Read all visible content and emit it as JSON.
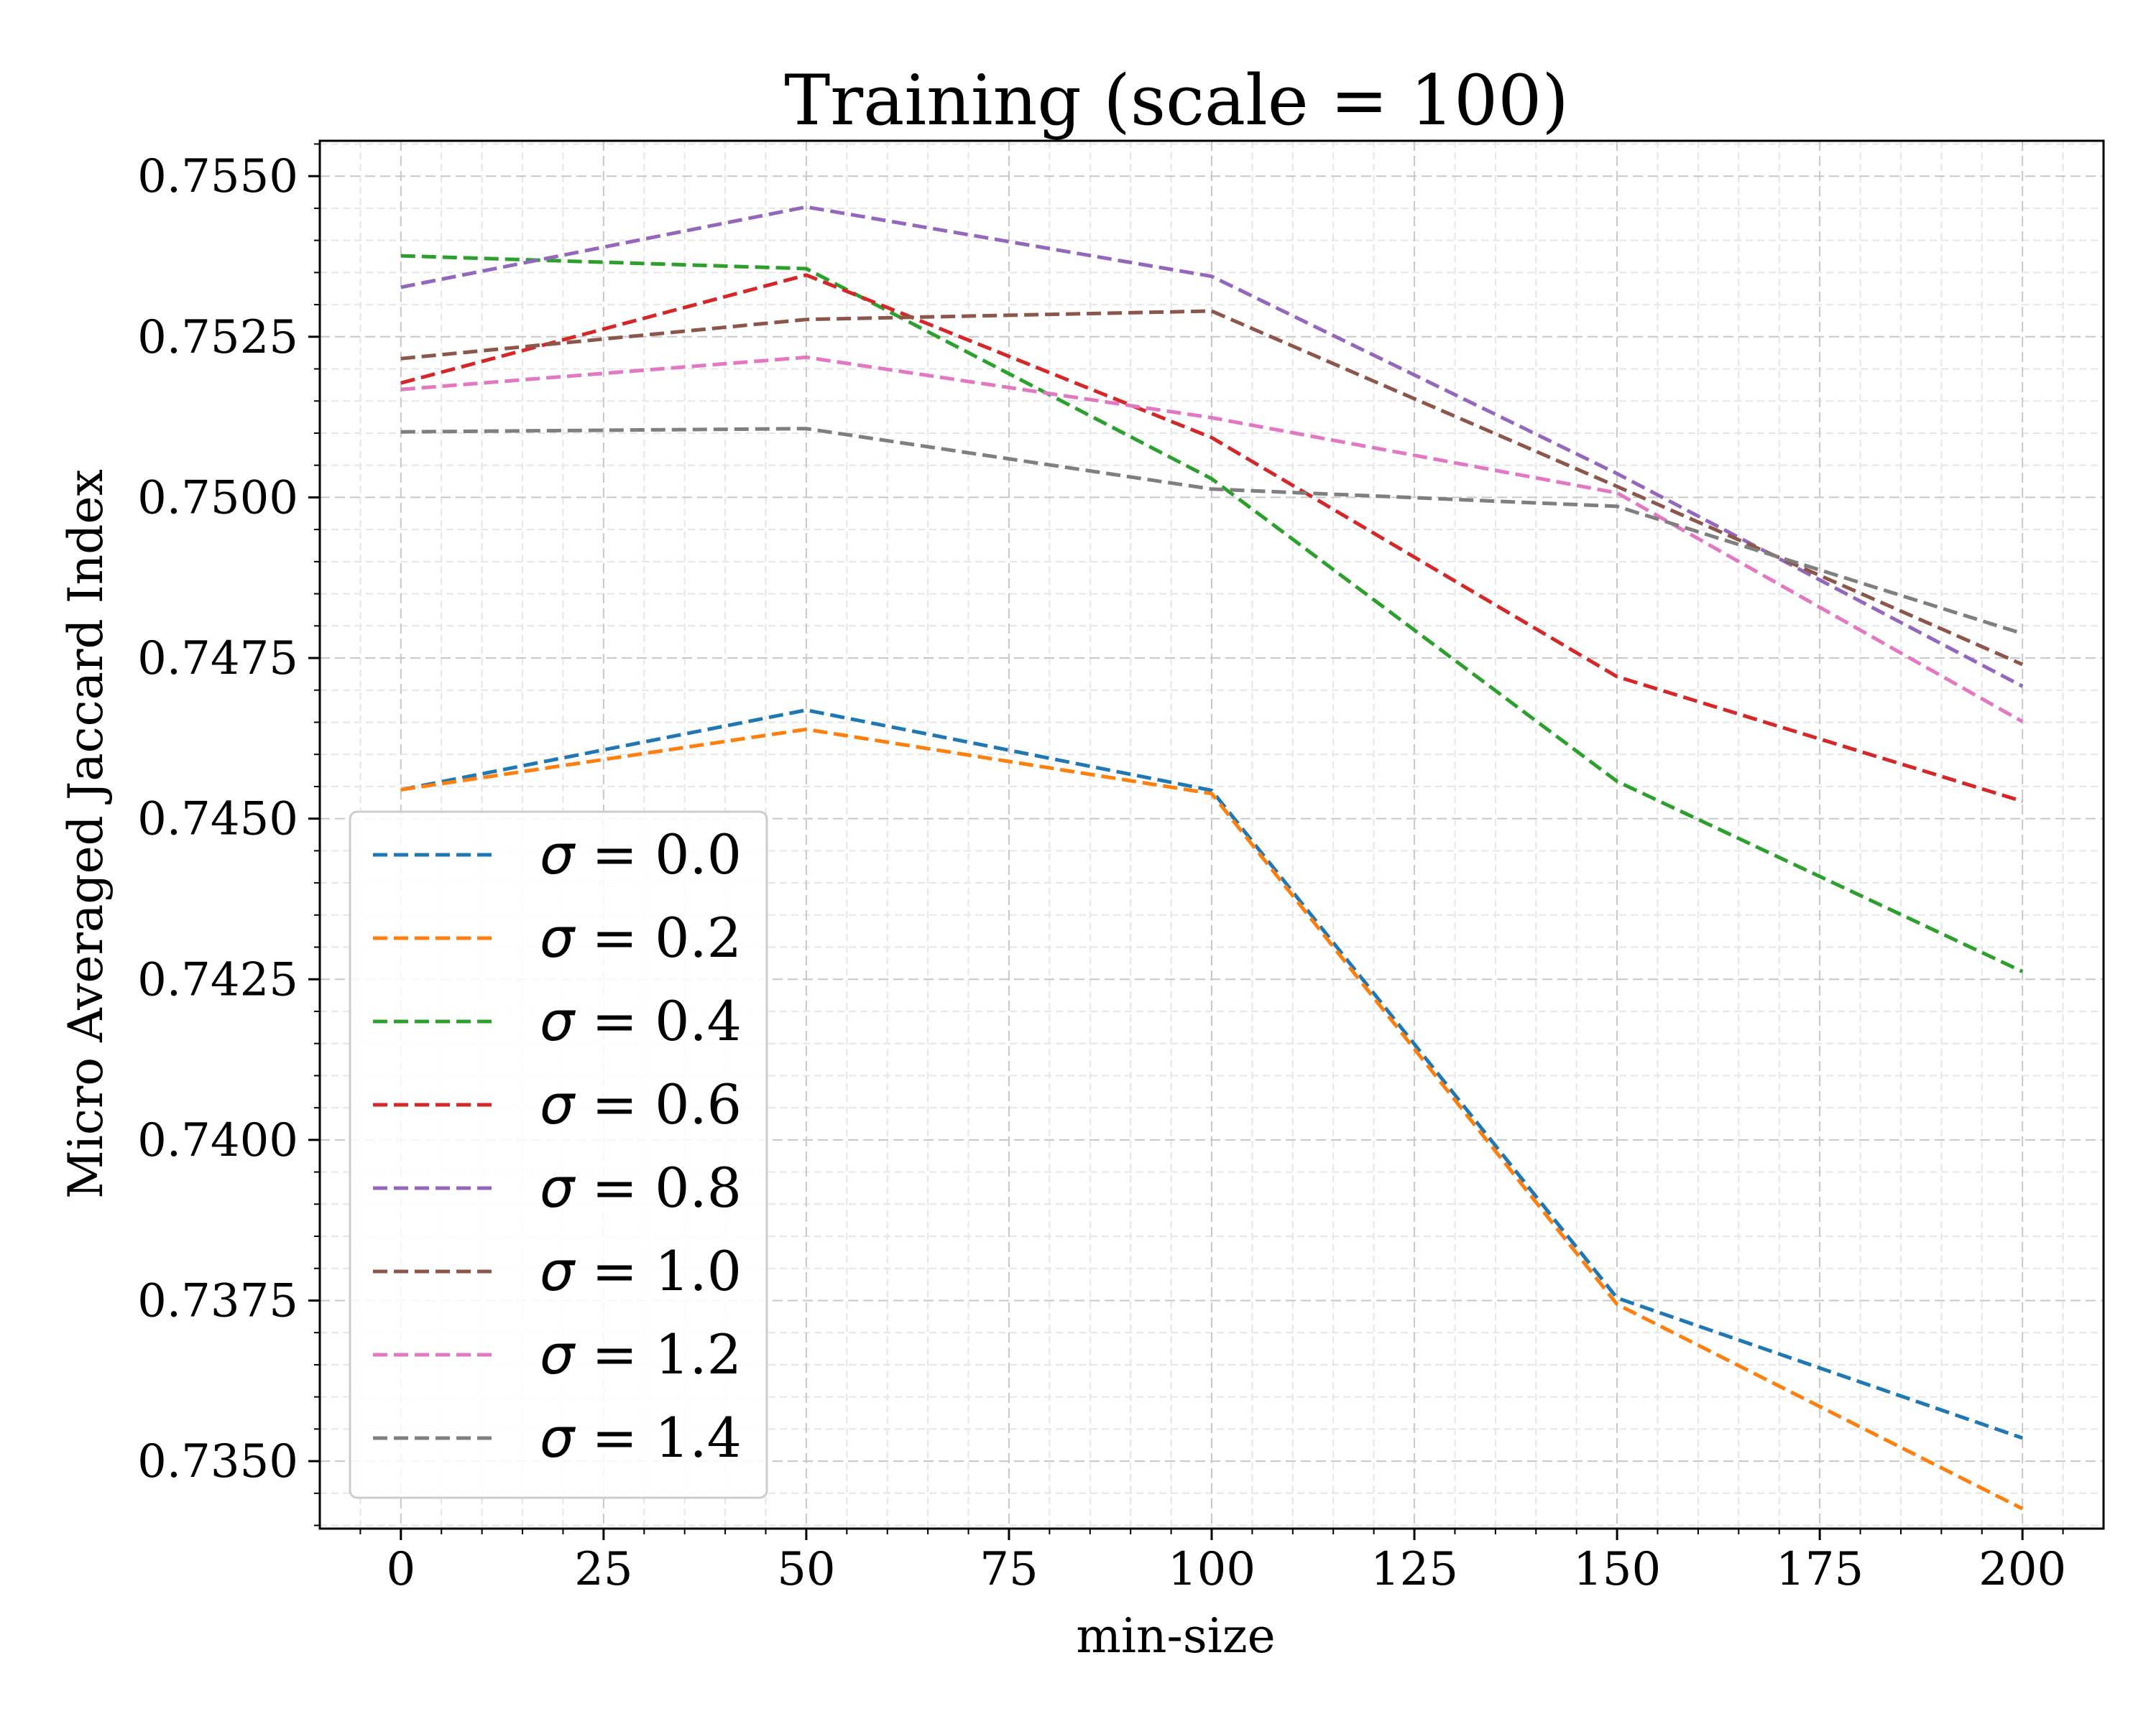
{
  "chart_data": {
    "type": "line",
    "title": "Training (scale = 100)",
    "xlabel": "min-size",
    "ylabel": "Micro Averaged Jaccard Index",
    "x": [
      0,
      50,
      100,
      150,
      200
    ],
    "xlim": [
      -10,
      210
    ],
    "ylim": [
      0.73395,
      0.75555
    ],
    "xticks": [
      0,
      25,
      50,
      75,
      100,
      125,
      150,
      175,
      200
    ],
    "xtick_labels": [
      "0",
      "25",
      "50",
      "75",
      "100",
      "125",
      "150",
      "175",
      "200"
    ],
    "yticks": [
      0.735,
      0.7375,
      0.74,
      0.7425,
      0.745,
      0.7475,
      0.75,
      0.7525,
      0.755
    ],
    "ytick_labels": [
      "0.7350",
      "0.7375",
      "0.7400",
      "0.7425",
      "0.7450",
      "0.7475",
      "0.7500",
      "0.7525",
      "0.7550"
    ],
    "grid": true,
    "legend_position": "lower-left",
    "line_style": "dashed",
    "series": [
      {
        "name": "σ = 0.0",
        "sigma_symbol": "σ",
        "sigma_rest": " = 0.0",
        "color": "#1f77b4",
        "values": [
          0.74545,
          0.74669,
          0.74544,
          0.73754,
          0.73536
        ]
      },
      {
        "name": "σ = 0.2",
        "sigma_symbol": "σ",
        "sigma_rest": " = 0.2",
        "color": "#ff7f0e",
        "values": [
          0.74545,
          0.74639,
          0.74539,
          0.73744,
          0.73426
        ]
      },
      {
        "name": "σ = 0.4",
        "sigma_symbol": "σ",
        "sigma_rest": " = 0.4",
        "color": "#2ca02c",
        "values": [
          0.75376,
          0.75356,
          0.75029,
          0.74558,
          0.74262
        ]
      },
      {
        "name": "σ = 0.6",
        "sigma_symbol": "σ",
        "sigma_rest": " = 0.6",
        "color": "#d62728",
        "values": [
          0.75178,
          0.75346,
          0.75093,
          0.74721,
          0.74527
        ]
      },
      {
        "name": "σ = 0.8",
        "sigma_symbol": "σ",
        "sigma_rest": " = 0.8",
        "color": "#9467bd",
        "values": [
          0.75327,
          0.75452,
          0.75344,
          0.75037,
          0.74706
        ]
      },
      {
        "name": "σ = 1.0",
        "sigma_symbol": "σ",
        "sigma_rest": " = 1.0",
        "color": "#8c564b",
        "values": [
          0.75216,
          0.75277,
          0.7529,
          0.75017,
          0.7474
        ]
      },
      {
        "name": "σ = 1.2",
        "sigma_symbol": "σ",
        "sigma_rest": " = 1.2",
        "color": "#e377c2",
        "values": [
          0.75168,
          0.75218,
          0.75124,
          0.75007,
          0.74651
        ]
      },
      {
        "name": "σ = 1.4",
        "sigma_symbol": "σ",
        "sigma_rest": " = 1.4",
        "color": "#7f7f7f",
        "values": [
          0.75102,
          0.75107,
          0.75013,
          0.74986,
          0.74788
        ]
      }
    ]
  }
}
